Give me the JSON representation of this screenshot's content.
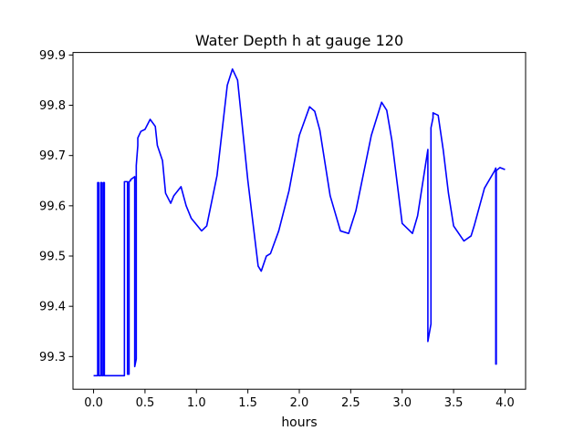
{
  "chart_data": {
    "type": "line",
    "title": "Water Depth h at gauge 120",
    "xlabel": "hours",
    "ylabel": "",
    "xlim": [
      -0.2,
      4.2
    ],
    "ylim": [
      99.235,
      99.905
    ],
    "xticks": [
      0.0,
      0.5,
      1.0,
      1.5,
      2.0,
      2.5,
      3.0,
      3.5,
      4.0
    ],
    "xtick_labels": [
      "0.0",
      "0.5",
      "1.0",
      "1.5",
      "2.0",
      "2.5",
      "3.0",
      "3.5",
      "4.0"
    ],
    "yticks": [
      99.3,
      99.4,
      99.5,
      99.6,
      99.7,
      99.8,
      99.9
    ],
    "ytick_labels": [
      "99.3",
      "99.4",
      "99.5",
      "99.6",
      "99.7",
      "99.8",
      "99.9"
    ],
    "grid": false,
    "series": [
      {
        "color": "#0000ff",
        "x": [
          0.0,
          0.04,
          0.04,
          0.05,
          0.05,
          0.07,
          0.07,
          0.08,
          0.08,
          0.095,
          0.095,
          0.105,
          0.105,
          0.3,
          0.3,
          0.33,
          0.33,
          0.345,
          0.345,
          0.36,
          0.36,
          0.4,
          0.4,
          0.415,
          0.415,
          0.43,
          0.43,
          0.46,
          0.5,
          0.55,
          0.6,
          0.62,
          0.67,
          0.7,
          0.75,
          0.78,
          0.85,
          0.9,
          0.95,
          1.05,
          1.1,
          1.2,
          1.3,
          1.35,
          1.4,
          1.5,
          1.6,
          1.63,
          1.68,
          1.72,
          1.8,
          1.9,
          2.0,
          2.1,
          2.15,
          2.2,
          2.3,
          2.4,
          2.48,
          2.55,
          2.6,
          2.7,
          2.8,
          2.85,
          2.9,
          3.0,
          3.1,
          3.15,
          3.25,
          3.25,
          3.28,
          3.28,
          3.3,
          3.3,
          3.35,
          3.4,
          3.45,
          3.5,
          3.6,
          3.67,
          3.7,
          3.8,
          3.9,
          3.91,
          3.91,
          3.915,
          3.915,
          3.95,
          4.0
        ],
        "y": [
          99.262,
          99.262,
          99.646,
          99.646,
          99.262,
          99.262,
          99.646,
          99.646,
          99.262,
          99.262,
          99.646,
          99.646,
          99.262,
          99.262,
          99.648,
          99.648,
          99.265,
          99.265,
          99.648,
          99.65,
          99.652,
          99.658,
          99.28,
          99.295,
          99.68,
          99.72,
          99.735,
          99.748,
          99.752,
          99.772,
          99.758,
          99.72,
          99.69,
          99.625,
          99.605,
          99.62,
          99.638,
          99.6,
          99.575,
          99.55,
          99.56,
          99.66,
          99.84,
          99.872,
          99.85,
          99.65,
          99.48,
          99.47,
          99.5,
          99.505,
          99.55,
          99.63,
          99.74,
          99.797,
          99.788,
          99.75,
          99.62,
          99.55,
          99.545,
          99.59,
          99.64,
          99.74,
          99.806,
          99.79,
          99.73,
          99.565,
          99.545,
          99.58,
          99.712,
          99.33,
          99.365,
          99.755,
          99.775,
          99.785,
          99.78,
          99.71,
          99.625,
          99.56,
          99.53,
          99.54,
          99.56,
          99.635,
          99.67,
          99.675,
          99.285,
          99.285,
          99.67,
          99.676,
          99.672
        ]
      }
    ]
  }
}
